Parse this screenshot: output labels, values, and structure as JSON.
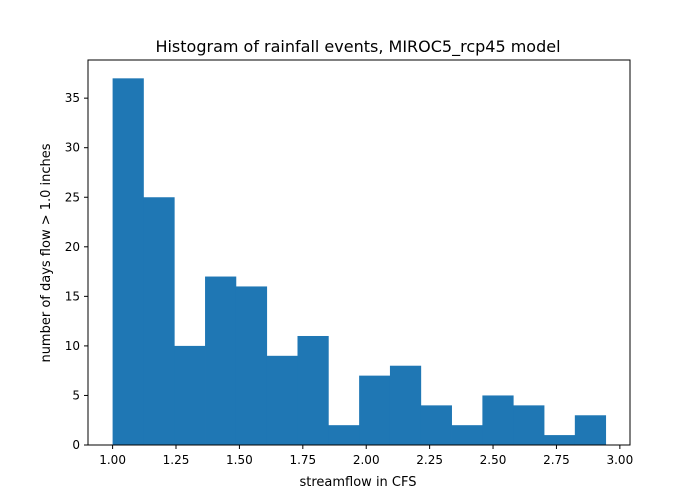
{
  "chart_data": {
    "type": "bar",
    "title": "Histogram of rainfall events, MIROC5_rcp45 model",
    "xlabel": "streamflow in CFS",
    "ylabel": "number of days flow > 1.0 inches",
    "xlim": [
      0.903,
      3.04
    ],
    "ylim": [
      0,
      38.85
    ],
    "grid": false,
    "bar_color": "#1f77b4",
    "bin_start": 1.0,
    "bin_width": 0.1215,
    "values": [
      37,
      25,
      10,
      17,
      16,
      9,
      11,
      2,
      7,
      8,
      4,
      2,
      5,
      4,
      1,
      3
    ],
    "x_ticks": [
      {
        "value": 1.0,
        "label": "1.00"
      },
      {
        "value": 1.25,
        "label": "1.25"
      },
      {
        "value": 1.5,
        "label": "1.50"
      },
      {
        "value": 1.75,
        "label": "1.75"
      },
      {
        "value": 2.0,
        "label": "2.00"
      },
      {
        "value": 2.25,
        "label": "2.25"
      },
      {
        "value": 2.5,
        "label": "2.50"
      },
      {
        "value": 2.75,
        "label": "2.75"
      },
      {
        "value": 3.0,
        "label": "3.00"
      }
    ],
    "y_ticks": [
      {
        "value": 0,
        "label": "0"
      },
      {
        "value": 5,
        "label": "5"
      },
      {
        "value": 10,
        "label": "10"
      },
      {
        "value": 15,
        "label": "15"
      },
      {
        "value": 20,
        "label": "20"
      },
      {
        "value": 25,
        "label": "25"
      },
      {
        "value": 30,
        "label": "30"
      },
      {
        "value": 35,
        "label": "35"
      }
    ]
  }
}
